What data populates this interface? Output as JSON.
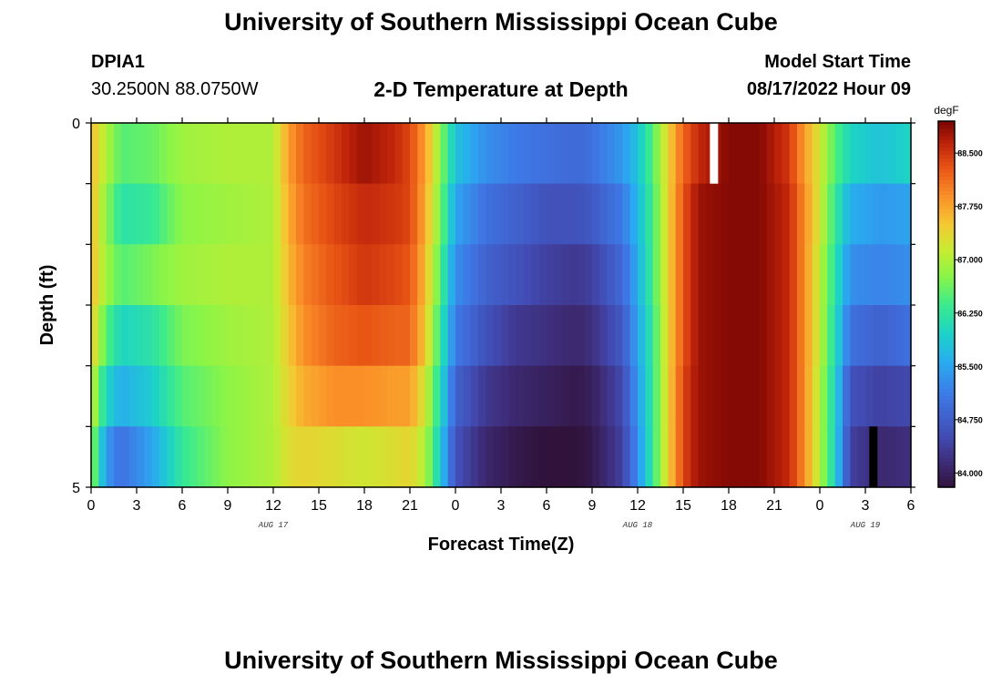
{
  "header": {
    "title": "University of Southern Mississippi Ocean Cube",
    "station_id": "DPIA1",
    "station_coords": "30.2500N  88.0750W",
    "plot_title": "2-D Temperature at Depth",
    "start_label": "Model Start Time",
    "start_value": "08/17/2022 Hour 09"
  },
  "footer": {
    "title": "University of Southern Mississippi Ocean Cube"
  },
  "chart_data": {
    "type": "heatmap",
    "title": "2-D Temperature at Depth",
    "xlabel": "Forecast Time(Z)",
    "ylabel": "Depth (ft)",
    "xlim": [
      0,
      54
    ],
    "ylim": [
      0,
      5
    ],
    "x_ticks": [
      0,
      3,
      6,
      9,
      12,
      15,
      18,
      21,
      24,
      27,
      30,
      33,
      36,
      39,
      42,
      45,
      48,
      51,
      54
    ],
    "x_tick_labels": [
      "0",
      "3",
      "6",
      "9",
      "12",
      "15",
      "18",
      "21",
      "0",
      "3",
      "6",
      "9",
      "12",
      "15",
      "18",
      "21",
      "0",
      "3",
      "6"
    ],
    "date_labels": [
      {
        "x": 12,
        "text": "AUG 17"
      },
      {
        "x": 36,
        "text": "AUG 18"
      },
      {
        "x": 51,
        "text": "AUG 19"
      }
    ],
    "y_ticks": [
      0,
      5
    ],
    "y_tick_labels": [
      "0",
      "5"
    ],
    "colorbar": {
      "unit": "degF",
      "range": [
        83.8,
        88.95
      ],
      "ticks": [
        84.0,
        84.75,
        85.5,
        86.25,
        87.0,
        87.75,
        88.5
      ],
      "tick_labels": [
        "84.000",
        "84.750",
        "85.500",
        "86.250",
        "87.000",
        "87.750",
        "88.500"
      ]
    },
    "depth_rows": [
      0,
      1,
      2,
      3,
      4,
      5
    ],
    "time_key": [
      0,
      1,
      2,
      4,
      6,
      9,
      12,
      13,
      14,
      16,
      18,
      20,
      21,
      22,
      23,
      24,
      26,
      28,
      30,
      32,
      33,
      35,
      36,
      37,
      38,
      39,
      40,
      42,
      44,
      46,
      47,
      48,
      49,
      50,
      52,
      54
    ],
    "temperature_rows": [
      [
        87.6,
        87.0,
        86.5,
        86.6,
        86.9,
        87.0,
        87.0,
        87.8,
        88.2,
        88.5,
        88.8,
        88.6,
        88.4,
        87.8,
        86.8,
        85.8,
        85.3,
        85.1,
        85.0,
        84.9,
        85.0,
        85.4,
        85.8,
        86.5,
        87.4,
        88.2,
        88.6,
        88.9,
        88.9,
        88.5,
        87.8,
        87.2,
        86.5,
        86.0,
        85.8,
        86.0
      ],
      [
        87.6,
        86.8,
        86.2,
        86.3,
        86.8,
        86.9,
        87.0,
        87.7,
        88.1,
        88.4,
        88.6,
        88.5,
        88.4,
        87.7,
        86.7,
        85.5,
        85.0,
        84.8,
        84.6,
        84.6,
        84.7,
        85.1,
        85.7,
        86.4,
        87.4,
        88.3,
        88.8,
        88.9,
        88.9,
        88.6,
        87.9,
        87.2,
        86.3,
        85.6,
        85.4,
        85.5
      ],
      [
        87.6,
        86.9,
        86.5,
        86.7,
        86.9,
        87.0,
        87.0,
        87.6,
        88.0,
        88.3,
        88.5,
        88.4,
        88.3,
        87.6,
        86.5,
        85.3,
        84.8,
        84.6,
        84.4,
        84.3,
        84.4,
        84.9,
        85.6,
        86.4,
        87.4,
        88.3,
        88.8,
        88.9,
        88.9,
        88.6,
        87.9,
        87.1,
        86.2,
        85.3,
        85.2,
        85.3
      ],
      [
        87.5,
        86.5,
        86.0,
        86.2,
        86.7,
        86.9,
        87.0,
        87.5,
        87.9,
        88.2,
        88.3,
        88.2,
        88.2,
        87.5,
        86.3,
        85.1,
        84.6,
        84.3,
        84.2,
        84.1,
        84.2,
        84.7,
        85.5,
        86.3,
        87.4,
        88.3,
        88.8,
        88.9,
        88.9,
        88.6,
        87.9,
        87.1,
        86.1,
        85.0,
        84.8,
        85.0
      ],
      [
        87.2,
        86.0,
        85.6,
        85.9,
        86.5,
        86.8,
        87.0,
        87.4,
        87.7,
        87.9,
        87.9,
        87.8,
        87.8,
        87.2,
        86.1,
        84.8,
        84.3,
        84.1,
        84.0,
        83.9,
        84.0,
        84.5,
        85.4,
        86.3,
        87.4,
        88.4,
        88.8,
        88.9,
        88.9,
        88.6,
        87.9,
        87.0,
        86.0,
        84.6,
        84.4,
        84.5
      ],
      [
        86.9,
        85.4,
        85.0,
        85.5,
        86.3,
        86.8,
        87.0,
        87.3,
        87.4,
        87.3,
        87.2,
        87.3,
        87.4,
        87.0,
        85.9,
        84.6,
        84.1,
        83.9,
        83.8,
        83.8,
        83.9,
        84.4,
        85.3,
        86.3,
        87.4,
        88.4,
        88.8,
        88.9,
        88.9,
        88.6,
        87.9,
        87.0,
        86.0,
        84.4,
        84.1,
        84.2
      ]
    ],
    "missing_cells": [
      {
        "x": 41.0,
        "depth": 0,
        "kind": "white"
      },
      {
        "x": 51.5,
        "depth": 5,
        "kind": "black"
      }
    ]
  }
}
